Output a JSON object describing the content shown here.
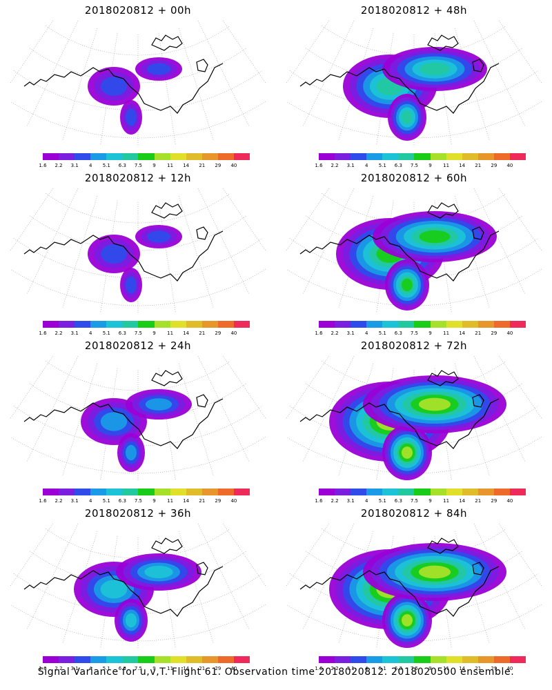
{
  "panels": [
    {
      "title": "2018020812 + 00h",
      "intensity": 1
    },
    {
      "title": "2018020812 + 48h",
      "intensity": 4
    },
    {
      "title": "2018020812 + 12h",
      "intensity": 1
    },
    {
      "title": "2018020812 + 60h",
      "intensity": 5
    },
    {
      "title": "2018020812 + 24h",
      "intensity": 2
    },
    {
      "title": "2018020812 + 72h",
      "intensity": 6
    },
    {
      "title": "2018020812 + 36h",
      "intensity": 3
    },
    {
      "title": "2018020812 + 84h",
      "intensity": 6
    }
  ],
  "colorbar": {
    "labels": [
      "1.6",
      "2.2",
      "3.1",
      "4",
      "5.1",
      "6.3",
      "7.5",
      "9",
      "11",
      "14",
      "21",
      "29",
      "40"
    ],
    "colors": [
      "#9a00d6",
      "#7a1ee0",
      "#2f4bea",
      "#1a9be6",
      "#1cc3d6",
      "#22c8a0",
      "#19cc19",
      "#a6e02a",
      "#e0e02a",
      "#e0bc2a",
      "#e6962a",
      "#ee6a2a",
      "#ee2a5a"
    ]
  },
  "footer": "Signal Variance for u,v,T. Flight 61. Observation time 2018020812. 2018020500 ensemble."
}
